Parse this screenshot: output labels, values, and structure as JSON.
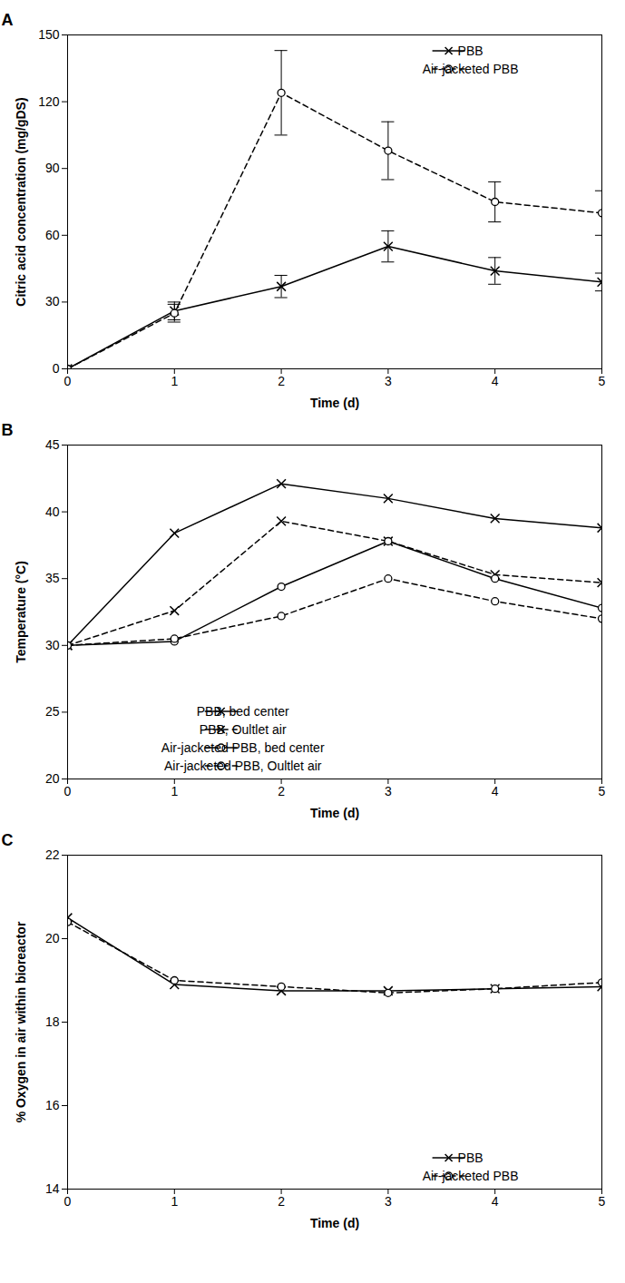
{
  "chart_data": [
    {
      "type": "line",
      "panel_label": "A",
      "x": [
        0,
        1,
        2,
        3,
        4,
        5
      ],
      "xlim": [
        0,
        5
      ],
      "xticks": [
        0,
        1,
        2,
        3,
        4,
        5
      ],
      "ylim": [
        0,
        150
      ],
      "yticks": [
        0,
        30,
        60,
        90,
        120,
        150
      ],
      "xlabel": "Time (d)",
      "ylabel": "Citric acid concentration (mg/gDS)",
      "legend": "top-right",
      "grid": false,
      "series": [
        {
          "name": "PBB",
          "color": "#000000",
          "marker": "x",
          "line_style": "solid",
          "values": [
            0,
            26,
            37,
            55,
            44,
            39
          ],
          "errors": [
            0,
            4,
            5,
            7,
            6,
            4
          ]
        },
        {
          "name": "Air-jacketed PBB",
          "color": "#000000",
          "marker": "o",
          "line_style": "dashed",
          "values": [
            0,
            25,
            124,
            98,
            75,
            70
          ],
          "errors": [
            0,
            4,
            19,
            13,
            9,
            10
          ]
        }
      ]
    },
    {
      "type": "line",
      "panel_label": "B",
      "x": [
        0,
        1,
        2,
        3,
        4,
        5
      ],
      "xlim": [
        0,
        5
      ],
      "xticks": [
        0,
        1,
        2,
        3,
        4,
        5
      ],
      "ylim": [
        20,
        45
      ],
      "yticks": [
        20,
        25,
        30,
        35,
        40,
        45
      ],
      "xlabel": "Time (d)",
      "ylabel": "Temperature (°C)",
      "legend": "bottom-center",
      "grid": false,
      "series": [
        {
          "name": "PBB, bed center",
          "color": "#000000",
          "marker": "x",
          "line_style": "solid",
          "values": [
            30,
            38.4,
            42.1,
            41,
            39.5,
            38.8
          ]
        },
        {
          "name": "PBB, Oultlet air",
          "color": "#000000",
          "marker": "x",
          "line_style": "dashed",
          "values": [
            30,
            32.6,
            39.3,
            37.8,
            35.3,
            34.7
          ]
        },
        {
          "name": "Air-jacketed PBB, bed center",
          "color": "#000000",
          "marker": "o",
          "line_style": "solid",
          "values": [
            30,
            30.3,
            34.4,
            37.8,
            35,
            32.8
          ]
        },
        {
          "name": "Air-jacketed PBB, Oultlet air",
          "color": "#000000",
          "marker": "o",
          "line_style": "dashed",
          "values": [
            30,
            30.5,
            32.2,
            35,
            33.3,
            32
          ]
        }
      ]
    },
    {
      "type": "line",
      "panel_label": "C",
      "x": [
        0,
        1,
        2,
        3,
        4,
        5
      ],
      "xlim": [
        0,
        5
      ],
      "xticks": [
        0,
        1,
        2,
        3,
        4,
        5
      ],
      "ylim": [
        14,
        22
      ],
      "yticks": [
        14,
        16,
        18,
        20,
        22
      ],
      "xlabel": "Time (d)",
      "ylabel": "% Oxygen in air within bioreactor",
      "legend": "bottom-right",
      "grid": false,
      "series": [
        {
          "name": "PBB",
          "color": "#000000",
          "marker": "x",
          "line_style": "solid",
          "values": [
            20.5,
            18.9,
            18.75,
            18.75,
            18.8,
            18.85
          ]
        },
        {
          "name": "Air-jacketed PBB",
          "color": "#000000",
          "marker": "o",
          "line_style": "dashed",
          "values": [
            20.4,
            19.0,
            18.85,
            18.7,
            18.8,
            18.95
          ]
        }
      ]
    }
  ]
}
